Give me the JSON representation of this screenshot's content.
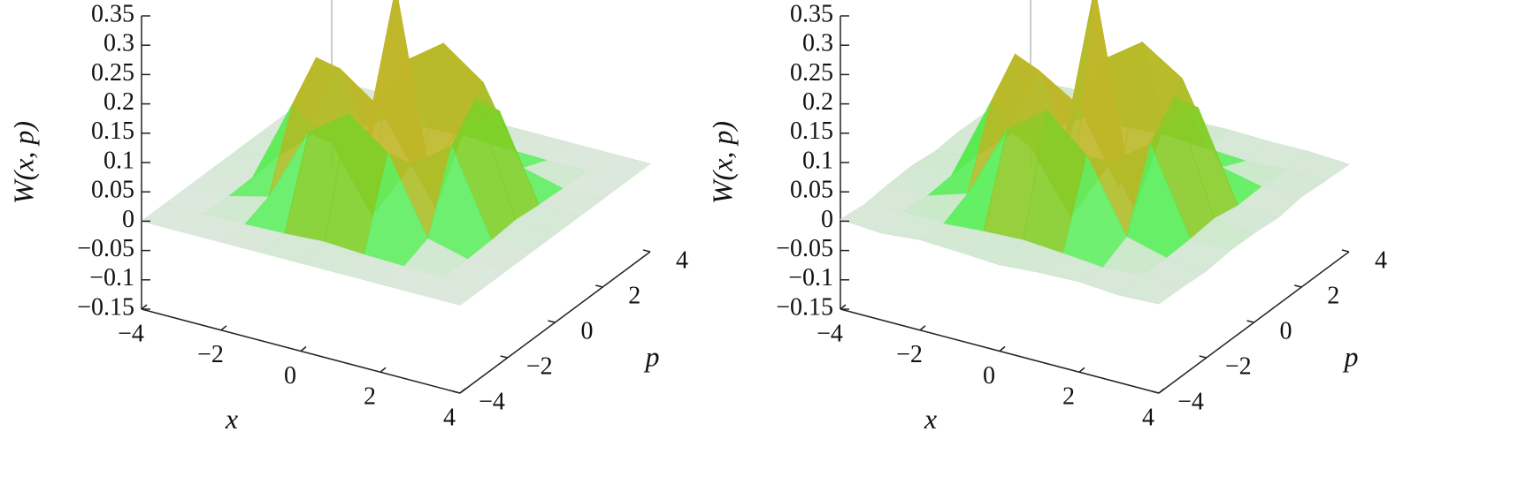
{
  "chart_data": [
    {
      "type": "surface3d",
      "xlabel": "x",
      "ylabel": "p",
      "zlabel": "W(x, p)",
      "x": [
        -4,
        -3,
        -2,
        -1,
        0,
        1,
        2,
        3,
        4
      ],
      "y": [
        -4,
        -3,
        -2,
        -1,
        0,
        1,
        2,
        3,
        4
      ],
      "z": [
        [
          0,
          0,
          0,
          0,
          0,
          0,
          0,
          0,
          0
        ],
        [
          0,
          0,
          0,
          0.002,
          0.006,
          0.002,
          0,
          0,
          0
        ],
        [
          0,
          0,
          0.017,
          0.145,
          0.194,
          0.145,
          0.017,
          0,
          0
        ],
        [
          0,
          0.002,
          0.145,
          0.096,
          -0.009,
          0.096,
          0.145,
          0.002,
          0
        ],
        [
          0,
          0.006,
          0.194,
          -0.009,
          0.35,
          -0.009,
          0.194,
          0.006,
          0
        ],
        [
          0,
          0.002,
          0.145,
          0.096,
          -0.009,
          0.096,
          0.145,
          0.002,
          0
        ],
        [
          0,
          0,
          0.017,
          0.145,
          0.194,
          0.145,
          0.017,
          0,
          0
        ],
        [
          0,
          0,
          0,
          0.002,
          0.006,
          0.002,
          0,
          0,
          0
        ],
        [
          0,
          0,
          0,
          0,
          0,
          0,
          0,
          0,
          0
        ]
      ],
      "xlim": [
        -4,
        4
      ],
      "ylim": [
        -4,
        4
      ],
      "zlim": [
        -0.15,
        0.35
      ],
      "xticks": [
        {
          "value": -4,
          "label": "−4"
        },
        {
          "value": -2,
          "label": "−2"
        },
        0,
        2,
        4
      ],
      "yticks": [
        {
          "value": -4,
          "label": "−4"
        },
        {
          "value": -2,
          "label": "−2"
        },
        0,
        2,
        4
      ],
      "zticks": [
        {
          "value": -0.15,
          "label": "−0.15"
        },
        {
          "value": -0.1,
          "label": "−0.1"
        },
        {
          "value": -0.05,
          "label": "−0.05"
        },
        0,
        0.05,
        0.1,
        0.15,
        0.2,
        0.25,
        0.3,
        0.35
      ]
    },
    {
      "type": "surface3d",
      "xlabel": "x",
      "ylabel": "p",
      "zlabel": "W(x, p)",
      "x": [
        -4,
        -3,
        -2,
        -1,
        0,
        1,
        2,
        3,
        4
      ],
      "y": [
        -4,
        -3,
        -2,
        -1,
        0,
        1,
        2,
        3,
        4
      ],
      "z": [
        [
          0.003,
          -0.002,
          0.004,
          0.001,
          -0.003,
          0.002,
          0.004,
          -0.001,
          0.002
        ],
        [
          -0.002,
          0.004,
          0.001,
          0.006,
          0.009,
          0.004,
          -0.002,
          0.003,
          0.001
        ],
        [
          0.002,
          0.001,
          0.022,
          0.15,
          0.2,
          0.14,
          0.02,
          0.002,
          -0.002
        ],
        [
          0.004,
          0.005,
          0.15,
          0.09,
          -0.012,
          0.1,
          0.148,
          0.004,
          0.003
        ],
        [
          -0.001,
          0.008,
          0.2,
          -0.014,
          0.35,
          -0.01,
          0.198,
          0.009,
          0.002
        ],
        [
          0.003,
          0.003,
          0.142,
          0.1,
          -0.02,
          0.094,
          0.15,
          0.001,
          -0.002
        ],
        [
          0.001,
          -0.002,
          0.02,
          0.148,
          0.196,
          0.152,
          0.018,
          0.003,
          0.004
        ],
        [
          0.004,
          0.002,
          0.003,
          0.004,
          0.008,
          0.003,
          -0.001,
          0.002,
          0.001
        ],
        [
          -0.002,
          0.003,
          0.001,
          -0.001,
          0.002,
          0.004,
          0.002,
          0.003,
          -0.001
        ]
      ],
      "xlim": [
        -4,
        4
      ],
      "ylim": [
        -4,
        4
      ],
      "zlim": [
        -0.15,
        0.35
      ],
      "xticks": [
        {
          "value": -4,
          "label": "−4"
        },
        {
          "value": -2,
          "label": "−2"
        },
        0,
        2,
        4
      ],
      "yticks": [
        {
          "value": -4,
          "label": "−4"
        },
        {
          "value": -2,
          "label": "−2"
        },
        0,
        2,
        4
      ],
      "zticks": [
        {
          "value": -0.15,
          "label": "−0.15"
        },
        {
          "value": -0.1,
          "label": "−0.1"
        },
        {
          "value": -0.05,
          "label": "−0.05"
        },
        0,
        0.05,
        0.1,
        0.15,
        0.2,
        0.25,
        0.3,
        0.35
      ]
    }
  ]
}
